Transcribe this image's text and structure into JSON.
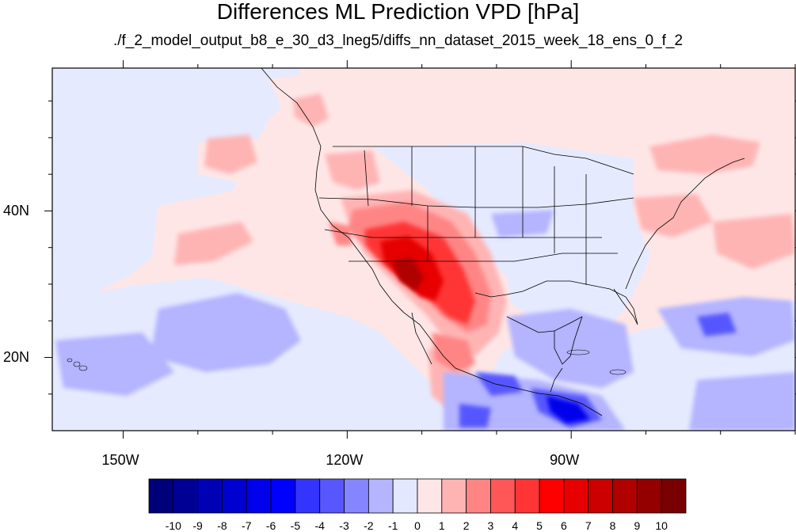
{
  "title": "Differences ML Prediction VPD [hPa]",
  "subtitle": "./f_2_model_output_b8_e_30_d3_lneg5/diffs_nn_dataset_2015_week_18_ens_0_f_2",
  "axes": {
    "lon_labels": [
      "150W",
      "120W",
      "90W"
    ],
    "lon_values": [
      -150,
      -120,
      -90
    ],
    "lat_labels": [
      "40N",
      "20N"
    ],
    "lat_values": [
      40,
      20
    ],
    "lon_range": [
      -159.5,
      -60
    ],
    "lat_range": [
      10,
      59.5
    ]
  },
  "colorbar": {
    "labels": [
      "-10",
      "-9",
      "-8",
      "-7",
      "-6",
      "-5",
      "-4",
      "-3",
      "-2",
      "-1",
      "0",
      "1",
      "2",
      "3",
      "4",
      "5",
      "6",
      "7",
      "8",
      "9",
      "10"
    ],
    "colors": [
      "#00007a",
      "#000095",
      "#0000b4",
      "#0000d0",
      "#0000eb",
      "#0000ff",
      "#3434ff",
      "#5757ff",
      "#8585ff",
      "#b4b4ff",
      "#e4e8ff",
      "#ffe6e6",
      "#ffb4b4",
      "#ff8585",
      "#ff5757",
      "#ff3434",
      "#ff0000",
      "#e60000",
      "#cc0000",
      "#b00000",
      "#930000",
      "#780000"
    ]
  },
  "fill_levels": {
    "neutral_neg": "#e6eaff",
    "neutral_pos": "#ffe6e6"
  }
}
